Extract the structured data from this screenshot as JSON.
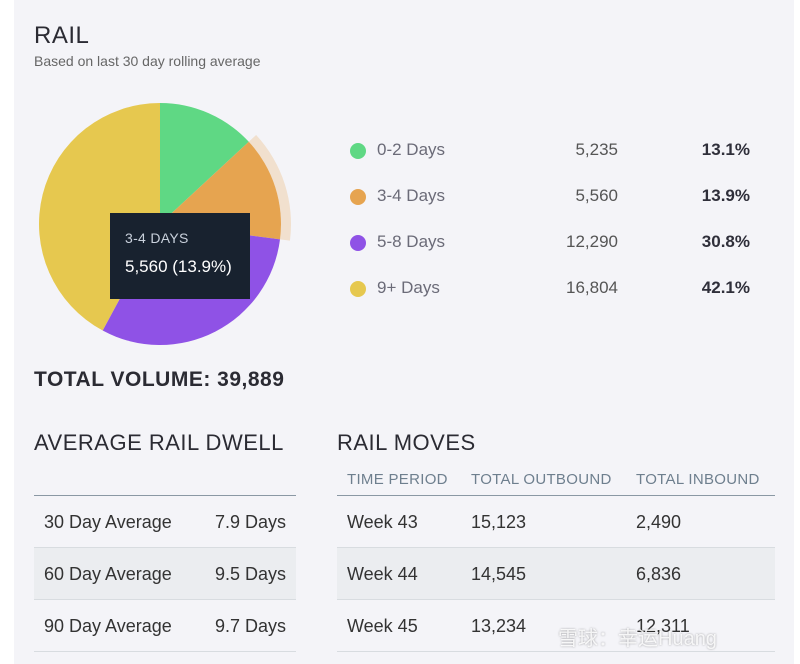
{
  "header": {
    "title": "RAIL",
    "subtitle": "Based on last 30 day rolling average"
  },
  "chart_data": {
    "type": "pie",
    "categories": [
      "0-2 Days",
      "3-4 Days",
      "5-8 Days",
      "9+ Days"
    ],
    "counts": [
      "5,235",
      "5,560",
      "12,290",
      "16,804"
    ],
    "percent_labels": [
      "13.1%",
      "13.9%",
      "30.8%",
      "42.1%"
    ],
    "values": [
      13.1,
      13.9,
      30.8,
      42.1
    ],
    "colors": [
      "#5fd884",
      "#e6a450",
      "#8f52e6",
      "#e6c84f"
    ],
    "highlighted_index": 1,
    "tooltip": {
      "label": "3-4 DAYS",
      "value": "5,560 (13.9%)"
    },
    "legend_position": "right"
  },
  "total": "TOTAL VOLUME: 39,889",
  "dwell": {
    "title": "AVERAGE RAIL DWELL",
    "rows": [
      {
        "label": "30 Day Average",
        "value": "7.9 Days"
      },
      {
        "label": "60 Day Average",
        "value": "9.5 Days"
      },
      {
        "label": "90 Day Average",
        "value": "9.7 Days"
      }
    ]
  },
  "moves": {
    "title": "RAIL MOVES",
    "headers": [
      "TIME PERIOD",
      "TOTAL OUTBOUND",
      "TOTAL INBOUND"
    ],
    "rows": [
      [
        "Week 43",
        "15,123",
        "2,490"
      ],
      [
        "Week 44",
        "14,545",
        "6,836"
      ],
      [
        "Week 45",
        "13,234",
        "12,311"
      ]
    ]
  },
  "watermark": "雪球：幸运Huang"
}
